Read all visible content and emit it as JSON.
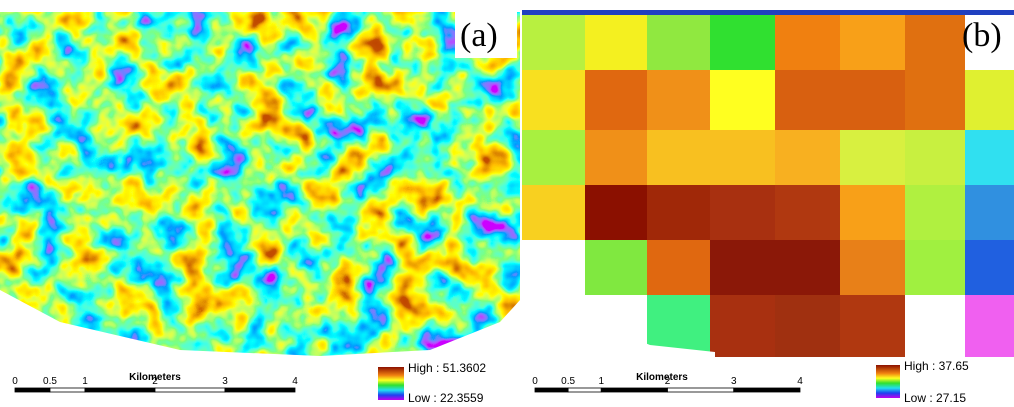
{
  "panels": [
    {
      "label": "(a)",
      "scale_title": "Kilometers",
      "scale_ticks": [
        0,
        0.5,
        1,
        2,
        3,
        4
      ],
      "legend_high": "High : 51.3602",
      "legend_low": "Low : 22.3559"
    },
    {
      "label": "(b)",
      "scale_title": "Kilometers",
      "scale_ticks": [
        0,
        0.5,
        1,
        2,
        3,
        4
      ],
      "legend_high": "High : 37.65",
      "legend_low": "Low : 27.15"
    }
  ]
}
